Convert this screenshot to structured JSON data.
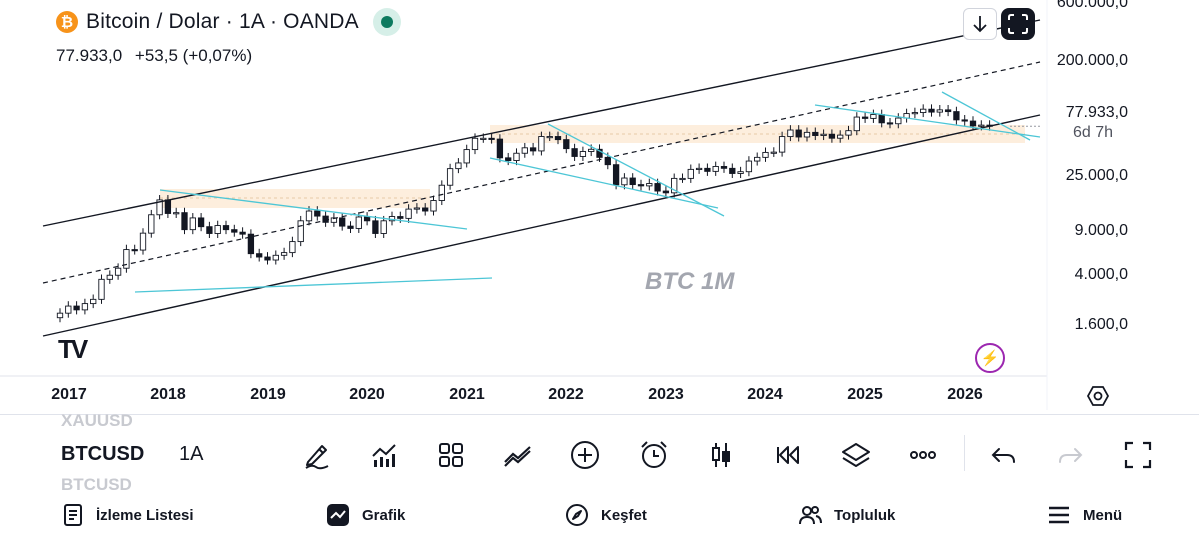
{
  "header": {
    "symbol_logo": "₿",
    "title": "Bitcoin / Dolar · 1A · OANDA",
    "live_indicator": "green-dot",
    "last": "77.933,0",
    "change": "+53,5 (+0,07%)"
  },
  "chart_data": {
    "type": "candlestick",
    "watermark": "BTC 1M",
    "price_scale": {
      "type": "log",
      "labels": [
        "600.000,0",
        "200.000,0",
        "77.933,0",
        "6d 7h",
        "25.000,0",
        "9.000,0",
        "4.000,0",
        "1.600,0"
      ],
      "values": [
        600000,
        200000,
        77933,
        null,
        25000,
        9000,
        4000,
        1600
      ]
    },
    "time_scale": {
      "labels": [
        "2017",
        "2018",
        "2019",
        "2020",
        "2021",
        "2022",
        "2023",
        "2024",
        "2025",
        "2026"
      ]
    },
    "candle_colors": {
      "up": "#ffffff",
      "down": "#131722",
      "wick": "#131722"
    },
    "annotation_colors": {
      "channel": "#131722",
      "trendline": "#4dc6d6",
      "zone": "#fdeedd"
    },
    "monthly_closes": [
      1000,
      1180,
      1080,
      1250,
      1380,
      2200,
      2420,
      2850,
      4400,
      4350,
      6450,
      9900,
      14000,
      10200,
      10400,
      7000,
      9200,
      7500,
      6400,
      7700,
      7000,
      6600,
      6300,
      4000,
      3700,
      3450,
      3850,
      4100,
      5300,
      8600,
      10800,
      9600,
      8300,
      9200,
      7600,
      7200,
      9400,
      8600,
      6400,
      8600,
      9500,
      9100,
      11300,
      11600,
      10800,
      13800,
      19700,
      29000,
      33100,
      45200,
      58800,
      58800,
      57700,
      37300,
      35000,
      41500,
      47100,
      43800,
      61300,
      61300,
      57000,
      46200,
      38500,
      43200,
      45500,
      37700,
      31800,
      19900,
      23300,
      20000,
      19400,
      20500,
      17200,
      16500,
      23100,
      23100,
      28500,
      29200,
      27200,
      30500,
      29200,
      25900,
      27000,
      34600,
      37700,
      42300,
      42600,
      61200,
      71300,
      60600,
      67500,
      62700,
      64600,
      58900,
      63300,
      70200,
      96400,
      93400,
      102400,
      84300,
      82500,
      94200,
      104600,
      107100,
      115800,
      108200,
      114000,
      109500,
      90300,
      87800,
      78500,
      79900,
      77933
    ],
    "last_price": 77933,
    "countdown": "6d 7h"
  },
  "overlay": {
    "tv_logo": "TV",
    "flash_icon": "lightning-icon"
  },
  "toolbar": {
    "symbol_prev": "XAUUSD",
    "symbol": "BTCUSD",
    "symbol_next": "BTCUSD",
    "interval": "1A",
    "icons": [
      "draw-icon",
      "indicators-icon",
      "templates-icon",
      "compare-icon",
      "add-icon",
      "alert-icon",
      "chart-type-icon",
      "replay-icon",
      "layers-icon",
      "more-icon",
      "undo-icon",
      "redo-icon",
      "fullscreen-icon"
    ]
  },
  "nav": {
    "watchlist": "İzleme Listesi",
    "chart": "Grafik",
    "explore": "Keşfet",
    "community": "Topluluk",
    "menu": "Menü"
  }
}
